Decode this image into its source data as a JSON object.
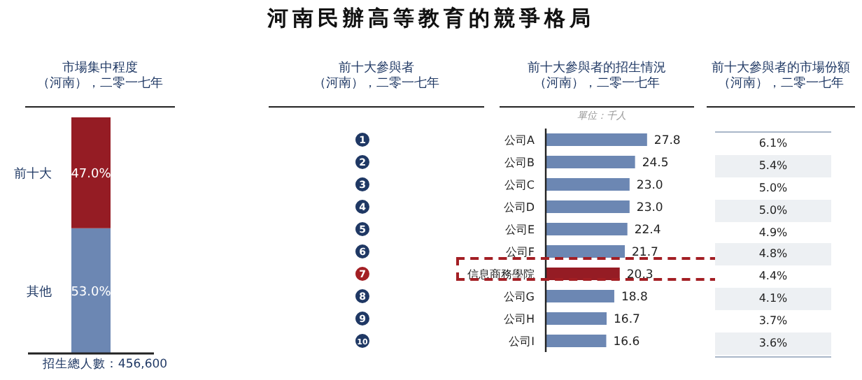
{
  "chart_data": [
    {
      "type": "other",
      "title": "河南民辦高等教育的競爭格局"
    },
    {
      "type": "bar",
      "stacked": true,
      "title": "市場集中程度",
      "subtitle": "（河南），二零一七年",
      "categories": [
        null
      ],
      "series": [
        {
          "name": "其他",
          "color": "#6c87b3",
          "values": [
            53.0
          ],
          "value_labels": [
            "53.0%"
          ]
        },
        {
          "name": "前十大",
          "color": "#951c24",
          "values": [
            47.0
          ],
          "value_labels": [
            "47.0%"
          ]
        }
      ],
      "annotations": [
        "招生總人數：456,600"
      ]
    },
    {
      "type": "other",
      "title": "前十大參與者",
      "subtitle": "（河南），二零一七年"
    },
    {
      "type": "bar",
      "orientation": "horizontal",
      "title": "前十大參與者的招生情況",
      "subtitle": "（河南），二零一七年",
      "annotations": [
        "單位：千人"
      ],
      "categories": [
        "公司A",
        "公司B",
        "公司C",
        "公司D",
        "公司E",
        "公司F",
        "信息商務學院",
        "公司G",
        "公司H",
        "公司I"
      ],
      "y2_categories": [
        "1",
        "2",
        "3",
        "4",
        "5",
        "6",
        "7",
        "8",
        "9",
        "10"
      ],
      "values": [
        27.8,
        24.5,
        23.0,
        23.0,
        22.4,
        21.7,
        20.3,
        18.8,
        16.7,
        16.6
      ],
      "value_labels": [
        "27.8",
        "24.5",
        "23.0",
        "23.0",
        "22.4",
        "21.7",
        "20.3",
        "18.8",
        "16.7",
        "16.6"
      ],
      "colors": [
        "#6c87b3",
        "#6c87b3",
        "#6c87b3",
        "#6c87b3",
        "#6c87b3",
        "#6c87b3",
        "#951c24",
        "#6c87b3",
        "#6c87b3",
        "#6c87b3"
      ]
    },
    {
      "type": "other",
      "title": "前十大參與者的市場份額",
      "subtitle": "（河南），二零一七年",
      "categories": [
        null,
        null,
        null,
        null,
        null,
        null,
        null,
        null,
        null,
        null
      ],
      "values": [
        6.1,
        5.4,
        5.0,
        5.0,
        4.9,
        4.8,
        4.4,
        4.1,
        3.7,
        3.6
      ],
      "value_labels": [
        "6.1%",
        "5.4%",
        "5.0%",
        "5.0%",
        "4.9%",
        "4.8%",
        "4.4%",
        "4.1%",
        "3.7%",
        "3.6%"
      ]
    }
  ]
}
